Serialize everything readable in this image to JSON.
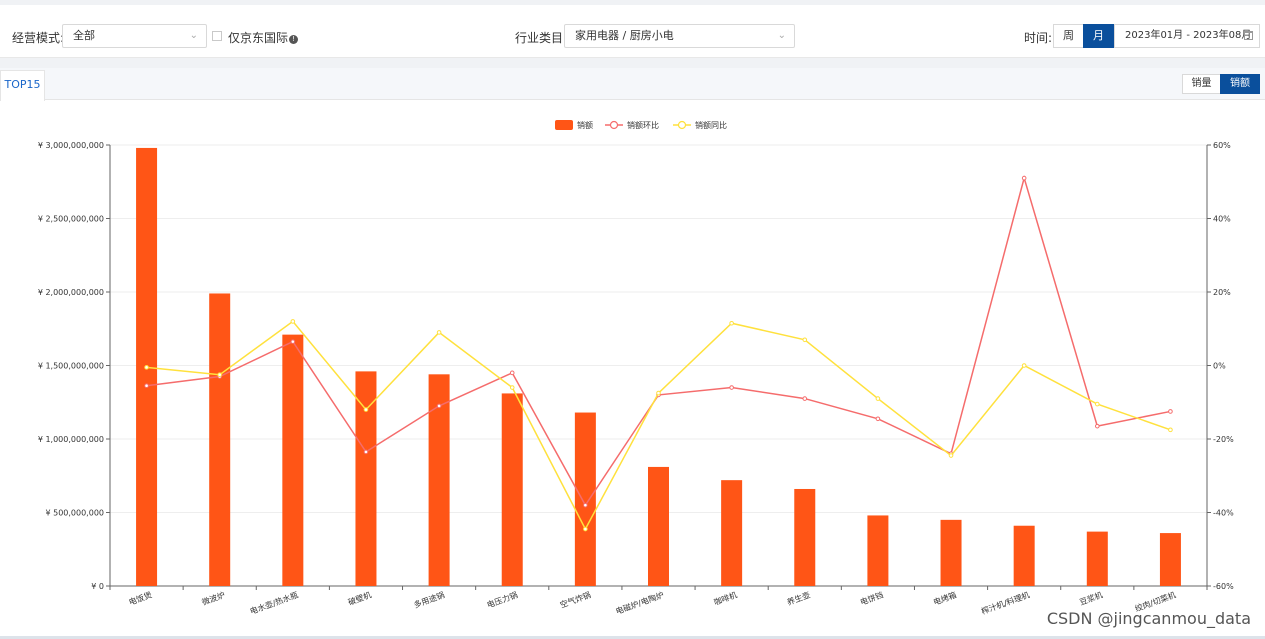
{
  "filters": {
    "mode_label": "经营模式:",
    "mode_value": "全部",
    "jd_intl_label": "仅京东国际",
    "category_label": "行业类目:",
    "category_value": "家用电器 / 厨房小电",
    "time_label": "时间:",
    "week_label": "周",
    "month_label": "月",
    "date_range": "2023年01月 - 2023年08月"
  },
  "panel": {
    "tab_label": "TOP15",
    "toggle_volume": "销量",
    "toggle_amount": "销额"
  },
  "watermark": "CSDN @jingcanmou_data",
  "colors": {
    "bar": "#ff5516",
    "mom": "#f56c6c",
    "yoy": "#ffe13d",
    "accent": "#0a4f9c"
  },
  "chart_data": {
    "type": "bar",
    "legend_placement": "top-center",
    "grid": true,
    "categories": [
      "电饭煲",
      "微波炉",
      "电水壶/热水瓶",
      "破壁机",
      "多用途锅",
      "电压力锅",
      "空气炸锅",
      "电磁炉/电陶炉",
      "咖啡机",
      "养生壶",
      "电饼铛",
      "电烤箱",
      "榨汁机/料理机",
      "豆浆机",
      "绞肉/切菜机"
    ],
    "y_left": {
      "min": 0,
      "max": 3000000000,
      "ticks": [
        0,
        500000000,
        1000000000,
        1500000000,
        2000000000,
        2500000000,
        3000000000
      ],
      "tick_labels": [
        "¥ 0",
        "¥ 500,000,000",
        "¥ 1,000,000,000",
        "¥ 1,500,000,000",
        "¥ 2,000,000,000",
        "¥ 2,500,000,000",
        "¥ 3,000,000,000"
      ]
    },
    "y_right": {
      "min": -60,
      "max": 60,
      "ticks": [
        -60,
        -40,
        -20,
        0,
        20,
        40,
        60
      ],
      "tick_labels": [
        "-60%",
        "-40%",
        "-20%",
        "0%",
        "20%",
        "40%",
        "60%"
      ]
    },
    "series": [
      {
        "name": "销额",
        "type": "bar",
        "axis": "left",
        "values": [
          2980000000,
          1990000000,
          1710000000,
          1460000000,
          1440000000,
          1310000000,
          1180000000,
          810000000,
          720000000,
          660000000,
          480000000,
          450000000,
          410000000,
          370000000,
          360000000
        ]
      },
      {
        "name": "销额环比",
        "type": "line",
        "axis": "right",
        "values": [
          -5.5,
          -3,
          6.5,
          -23.5,
          -11,
          -2,
          -38,
          -8,
          -6,
          -9,
          -14.5,
          -24,
          51,
          -16.5,
          -12.5
        ]
      },
      {
        "name": "销额同比",
        "type": "line",
        "axis": "right",
        "values": [
          -0.5,
          -2.5,
          12,
          -12,
          9,
          -6,
          -44.5,
          -7.5,
          11.5,
          7,
          -9,
          -24.5,
          0,
          -10.5,
          -17.5
        ]
      }
    ]
  }
}
